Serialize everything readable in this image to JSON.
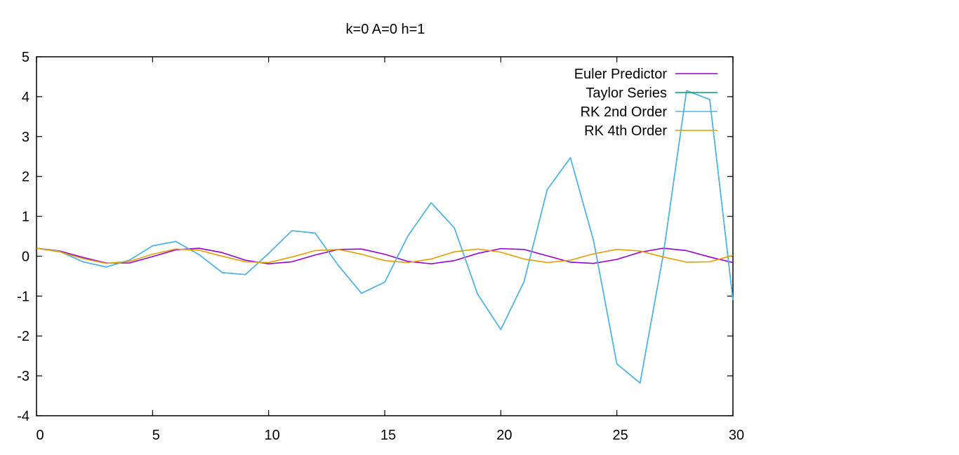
{
  "chart_data": {
    "type": "line",
    "title": "k=0 A=0 h=1",
    "xlabel": "",
    "ylabel": "",
    "xlim": [
      0,
      30
    ],
    "ylim": [
      -4,
      5
    ],
    "x_ticks": [
      0,
      5,
      10,
      15,
      20,
      25,
      30
    ],
    "y_ticks": [
      -4,
      -3,
      -2,
      -1,
      0,
      1,
      2,
      3,
      4,
      5
    ],
    "grid": false,
    "legend_position": "top-right",
    "x": [
      0,
      1,
      2,
      3,
      4,
      5,
      6,
      7,
      8,
      9,
      10,
      11,
      12,
      13,
      14,
      15,
      16,
      17,
      18,
      19,
      20,
      21,
      22,
      23,
      24,
      25,
      26,
      27,
      28,
      29,
      30
    ],
    "series": [
      {
        "name": "Euler Predictor",
        "color": "#9400d3",
        "values": [
          0.2,
          0.13,
          -0.03,
          -0.17,
          -0.17,
          -0.01,
          0.16,
          0.2,
          0.09,
          -0.1,
          -0.19,
          -0.14,
          0.03,
          0.17,
          0.18,
          0.05,
          -0.13,
          -0.19,
          -0.11,
          0.07,
          0.19,
          0.17,
          0.01,
          -0.15,
          -0.18,
          -0.08,
          0.1,
          0.2,
          0.14,
          -0.02,
          -0.16
        ]
      },
      {
        "name": "Taylor Series",
        "color": "#009e73",
        "values": [
          0.2,
          0.12,
          -0.14,
          -0.27,
          -0.1,
          0.26,
          0.37,
          0.04,
          -0.41,
          -0.46,
          0.07,
          0.64,
          0.58,
          -0.23,
          -0.93,
          -0.65,
          0.51,
          1.34,
          0.71,
          -0.95,
          -1.84,
          -0.64,
          1.67,
          2.47,
          0.38,
          -2.7,
          -3.18,
          0.04,
          4.15,
          3.93,
          -1.1
        ]
      },
      {
        "name": "RK 2nd Order",
        "color": "#56b4e9",
        "values": [
          0.2,
          0.12,
          -0.14,
          -0.27,
          -0.1,
          0.26,
          0.37,
          0.04,
          -0.41,
          -0.46,
          0.07,
          0.64,
          0.58,
          -0.23,
          -0.93,
          -0.65,
          0.51,
          1.34,
          0.71,
          -0.95,
          -1.84,
          -0.64,
          1.67,
          2.47,
          0.38,
          -2.7,
          -3.18,
          0.04,
          4.15,
          3.93,
          -1.1
        ]
      },
      {
        "name": "RK 4th Order",
        "color": "#e69f00",
        "values": [
          0.2,
          0.11,
          -0.06,
          -0.18,
          -0.13,
          0.05,
          0.18,
          0.15,
          0.0,
          -0.14,
          -0.16,
          -0.02,
          0.14,
          0.17,
          0.05,
          -0.11,
          -0.16,
          -0.07,
          0.11,
          0.18,
          0.1,
          -0.07,
          -0.16,
          -0.1,
          0.06,
          0.17,
          0.13,
          -0.02,
          -0.15,
          -0.14,
          0.02
        ]
      }
    ]
  }
}
